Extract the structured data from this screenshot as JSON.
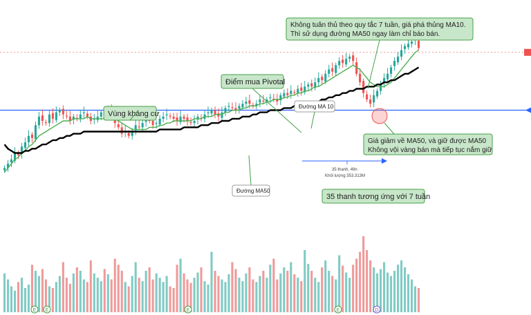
{
  "chart_data": {
    "type": "candlestick",
    "title": "",
    "xlabel": "",
    "ylabel": "",
    "grid": false,
    "colors": {
      "up": "#26a69a",
      "down": "#ef5350",
      "ma10": "#4caf50",
      "ma50": "#000000",
      "resistance": "#2962ff",
      "reference": "#ef5350",
      "vol_up": "#80cbc4",
      "vol_down": "#ef9a9a",
      "callout_fill": "#c8e6c9",
      "callout_border": "#43a047"
    },
    "price_range": [
      0,
      100
    ],
    "resistance_level": 55,
    "reference_level": 82,
    "candles_close": [
      28,
      30,
      32,
      35,
      34,
      38,
      40,
      43,
      42,
      48,
      52,
      50,
      49,
      53,
      51,
      54,
      55,
      53,
      52,
      50,
      52,
      51,
      53,
      54,
      52,
      50,
      51,
      52,
      54,
      53,
      55,
      52,
      49,
      47,
      44,
      45,
      43,
      45,
      48,
      47,
      49,
      51,
      50,
      48,
      49,
      51,
      52,
      53,
      52,
      51,
      50,
      52,
      51,
      50,
      49,
      50,
      52,
      51,
      53,
      54,
      55,
      53,
      52,
      54,
      56,
      57,
      56,
      55,
      57,
      58,
      59,
      58,
      57,
      58,
      60,
      59,
      60,
      61,
      60,
      59,
      62,
      63,
      62,
      64,
      63,
      65,
      64,
      66,
      67,
      66,
      68,
      70,
      69,
      72,
      74,
      73,
      76,
      78,
      77,
      79,
      80,
      78,
      72,
      68,
      63,
      60,
      58,
      62,
      64,
      67,
      70,
      72,
      75,
      78,
      80,
      83,
      85,
      86,
      87,
      88,
      84
    ],
    "ma10": [
      26,
      28,
      30,
      32,
      33,
      35,
      36,
      38,
      39,
      41,
      43,
      44,
      45,
      46,
      47,
      48,
      49,
      50,
      50,
      50,
      51,
      51,
      51,
      51,
      52,
      51,
      51,
      51,
      51,
      51,
      52,
      51,
      51,
      50,
      49,
      48,
      47,
      46,
      46,
      46,
      46,
      46,
      47,
      47,
      47,
      48,
      48,
      49,
      49,
      50,
      50,
      50,
      50,
      50,
      50,
      51,
      51,
      51,
      52,
      52,
      52,
      53,
      53,
      53,
      54,
      54,
      55,
      55,
      55,
      56,
      56,
      57,
      57,
      57,
      58,
      58,
      59,
      59,
      60,
      60,
      60,
      61,
      61,
      62,
      62,
      63,
      63,
      64,
      64,
      65,
      66,
      66,
      67,
      68,
      69,
      70,
      71,
      72,
      73,
      74,
      75,
      76,
      75,
      74,
      72,
      70,
      68,
      67,
      66,
      66,
      66,
      67,
      68,
      70,
      72,
      74,
      76,
      78,
      80,
      82,
      83
    ],
    "ma50": [
      39,
      37,
      36,
      35,
      35,
      35,
      36,
      36,
      37,
      37,
      38,
      39,
      39,
      40,
      41,
      41,
      42,
      42,
      43,
      43,
      44,
      44,
      44,
      45,
      45,
      45,
      45,
      45,
      45,
      45,
      45,
      45,
      45,
      45,
      45,
      45,
      45,
      45,
      45,
      45,
      45,
      45,
      45,
      45,
      45,
      46,
      46,
      46,
      46,
      46,
      46,
      46,
      47,
      47,
      47,
      47,
      47,
      48,
      48,
      48,
      49,
      49,
      49,
      50,
      50,
      50,
      51,
      51,
      51,
      52,
      52,
      52,
      53,
      53,
      54,
      54,
      54,
      55,
      55,
      55,
      55,
      56,
      56,
      56,
      57,
      57,
      57,
      58,
      58,
      58,
      59,
      59,
      60,
      60,
      61,
      61,
      62,
      62,
      63,
      63,
      64,
      64,
      65,
      65,
      65,
      66,
      66,
      66,
      67,
      67,
      68,
      68,
      69,
      69,
      70,
      71,
      72,
      72,
      73,
      74,
      75
    ],
    "volume": [
      45,
      38,
      30,
      25,
      35,
      40,
      28,
      32,
      55,
      48,
      42,
      50,
      38,
      30,
      28,
      35,
      42,
      58,
      40,
      33,
      45,
      52,
      48,
      38,
      35,
      60,
      45,
      40,
      36,
      50,
      44,
      38,
      62,
      55,
      48,
      35,
      30,
      42,
      58,
      40,
      36,
      48,
      52,
      38,
      45,
      40,
      35,
      42,
      30,
      28,
      55,
      62,
      45,
      38,
      34,
      40,
      46,
      52,
      36,
      32,
      70,
      48,
      42,
      38,
      35,
      44,
      58,
      50,
      40,
      36,
      45,
      52,
      38,
      35,
      42,
      48,
      40,
      55,
      62,
      38,
      45,
      52,
      48,
      58,
      44,
      40,
      36,
      72,
      56,
      48,
      40,
      35,
      52,
      60,
      48,
      42,
      38,
      66,
      54,
      46,
      40,
      55,
      62,
      70,
      88,
      72,
      60,
      52,
      45,
      50,
      58,
      46,
      42,
      48,
      55,
      60,
      52,
      44,
      38,
      30,
      28
    ],
    "annotations": {
      "resistance_zone": "Vùng kháng cự",
      "pivot_buy": "Điểm mua Pivotal",
      "ma10_label": "Đường MA 10",
      "ma50_label": "Đường MA50",
      "rule7": "Không tuân thủ theo quy tắc 7 tuần, giá phá thủng MA10. Thì sử dụng đường MA50 ngay làm chỉ báo bán.",
      "ma50_hold": "Giá giảm về MA50, và giữ được MA50 Không vội vàng bán mà tiếp tục nắm giữ",
      "bars35": "35 thanh tương ứng với 7 tuần",
      "measure_line1": "35 thanh, 49n",
      "measure_line2": "Khối lượng 353.313M",
      "event_markers": [
        "E",
        "E",
        "E",
        "E",
        "D"
      ]
    }
  }
}
